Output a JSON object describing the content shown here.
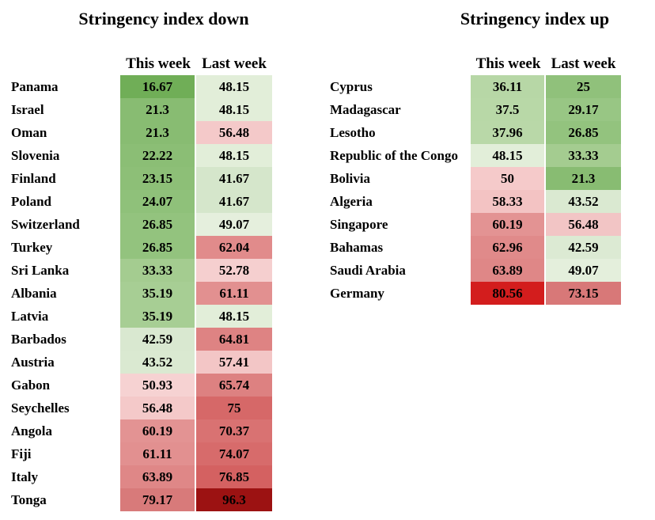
{
  "page": {
    "background": "#ffffff",
    "text_color": "#000000"
  },
  "chart_data": [
    {
      "type": "heatmap",
      "title": "Stringency index down",
      "columns": [
        "This week",
        "Last week"
      ],
      "legend_note": "cell background encodes value: green = low stringency, red = high stringency",
      "value_range": [
        0,
        100
      ],
      "rows": [
        {
          "country": "Panama",
          "this_week": 16.67,
          "last_week": 48.15,
          "this_color": "#70ae57",
          "last_color": "#e2eed9"
        },
        {
          "country": "Israel",
          "this_week": 21.3,
          "last_week": 48.15,
          "this_color": "#88bc72",
          "last_color": "#e2eed9"
        },
        {
          "country": "Oman",
          "this_week": 21.3,
          "last_week": 56.48,
          "this_color": "#88bc72",
          "last_color": "#f4c9c9"
        },
        {
          "country": "Slovenia",
          "this_week": 22.22,
          "last_week": 48.15,
          "this_color": "#8bbe75",
          "last_color": "#e2eed9"
        },
        {
          "country": "Finland",
          "this_week": 23.15,
          "last_week": 41.67,
          "this_color": "#8dbf77",
          "last_color": "#d5e6cb"
        },
        {
          "country": "Poland",
          "this_week": 24.07,
          "last_week": 41.67,
          "this_color": "#8fc17a",
          "last_color": "#d5e6cb"
        },
        {
          "country": "Switzerland",
          "this_week": 26.85,
          "last_week": 49.07,
          "this_color": "#93c37e",
          "last_color": "#e5efdd"
        },
        {
          "country": "Turkey",
          "this_week": 26.85,
          "last_week": 62.04,
          "this_color": "#93c37e",
          "last_color": "#e18b8b"
        },
        {
          "country": "Sri Lanka",
          "this_week": 33.33,
          "last_week": 52.78,
          "this_color": "#a4cc90",
          "last_color": "#f5cfcf"
        },
        {
          "country": "Albania",
          "this_week": 35.19,
          "last_week": 61.11,
          "this_color": "#a7ce94",
          "last_color": "#e29090"
        },
        {
          "country": "Latvia",
          "this_week": 35.19,
          "last_week": 48.15,
          "this_color": "#a7ce94",
          "last_color": "#e2eed9"
        },
        {
          "country": "Barbados",
          "this_week": 42.59,
          "last_week": 64.81,
          "this_color": "#d9e8d0",
          "last_color": "#de8383"
        },
        {
          "country": "Austria",
          "this_week": 43.52,
          "last_week": 57.41,
          "this_color": "#dae9d1",
          "last_color": "#f3c6c6"
        },
        {
          "country": "Gabon",
          "this_week": 50.93,
          "last_week": 65.74,
          "this_color": "#f6d2d2",
          "last_color": "#dd8181"
        },
        {
          "country": "Seychelles",
          "this_week": 56.48,
          "last_week": 75,
          "this_color": "#f4c9c9",
          "last_color": "#d66868"
        },
        {
          "country": "Angola",
          "this_week": 60.19,
          "last_week": 70.37,
          "this_color": "#e39393",
          "last_color": "#d97272"
        },
        {
          "country": "Fiji",
          "this_week": 61.11,
          "last_week": 74.07,
          "this_color": "#e29090",
          "last_color": "#d76b6b"
        },
        {
          "country": "Italy",
          "this_week": 63.89,
          "last_week": 76.85,
          "this_color": "#df8787",
          "last_color": "#d46161"
        },
        {
          "country": "Tonga",
          "this_week": 79.17,
          "last_week": 96.3,
          "this_color": "#d87a7a",
          "last_color": "#9c1212"
        }
      ]
    },
    {
      "type": "heatmap",
      "title": "Stringency index up",
      "columns": [
        "This week",
        "Last week"
      ],
      "legend_note": "cell background encodes value: green = low stringency, red = high stringency",
      "value_range": [
        0,
        100
      ],
      "rows": [
        {
          "country": "Cyprus",
          "this_week": 36.11,
          "last_week": 25,
          "this_color": "#b7d7a6",
          "last_color": "#90c17b"
        },
        {
          "country": "Madagascar",
          "this_week": 37.5,
          "last_week": 29.17,
          "this_color": "#b8d8a7",
          "last_color": "#98c684"
        },
        {
          "country": "Lesotho",
          "this_week": 37.96,
          "last_week": 26.85,
          "this_color": "#b9d8a8",
          "last_color": "#93c37e"
        },
        {
          "country": "Republic of the Congo",
          "this_week": 48.15,
          "last_week": 33.33,
          "this_color": "#e2eed9",
          "last_color": "#a4cc90"
        },
        {
          "country": "Bolivia",
          "this_week": 50,
          "last_week": 21.3,
          "this_color": "#f5caca",
          "last_color": "#88bc72"
        },
        {
          "country": "Algeria",
          "this_week": 58.33,
          "last_week": 43.52,
          "this_color": "#f3c3c3",
          "last_color": "#dae9d1"
        },
        {
          "country": "Singapore",
          "this_week": 60.19,
          "last_week": 56.48,
          "this_color": "#e39393",
          "last_color": "#f2c5c5"
        },
        {
          "country": "Bahamas",
          "this_week": 62.96,
          "last_week": 42.59,
          "this_color": "#e08a8a",
          "last_color": "#dcead3"
        },
        {
          "country": "Saudi Arabia",
          "this_week": 63.89,
          "last_week": 49.07,
          "this_color": "#df8787",
          "last_color": "#e4efdc"
        },
        {
          "country": "Germany",
          "this_week": 80.56,
          "last_week": 73.15,
          "this_color": "#d31d1d",
          "last_color": "#d87878"
        }
      ]
    }
  ]
}
